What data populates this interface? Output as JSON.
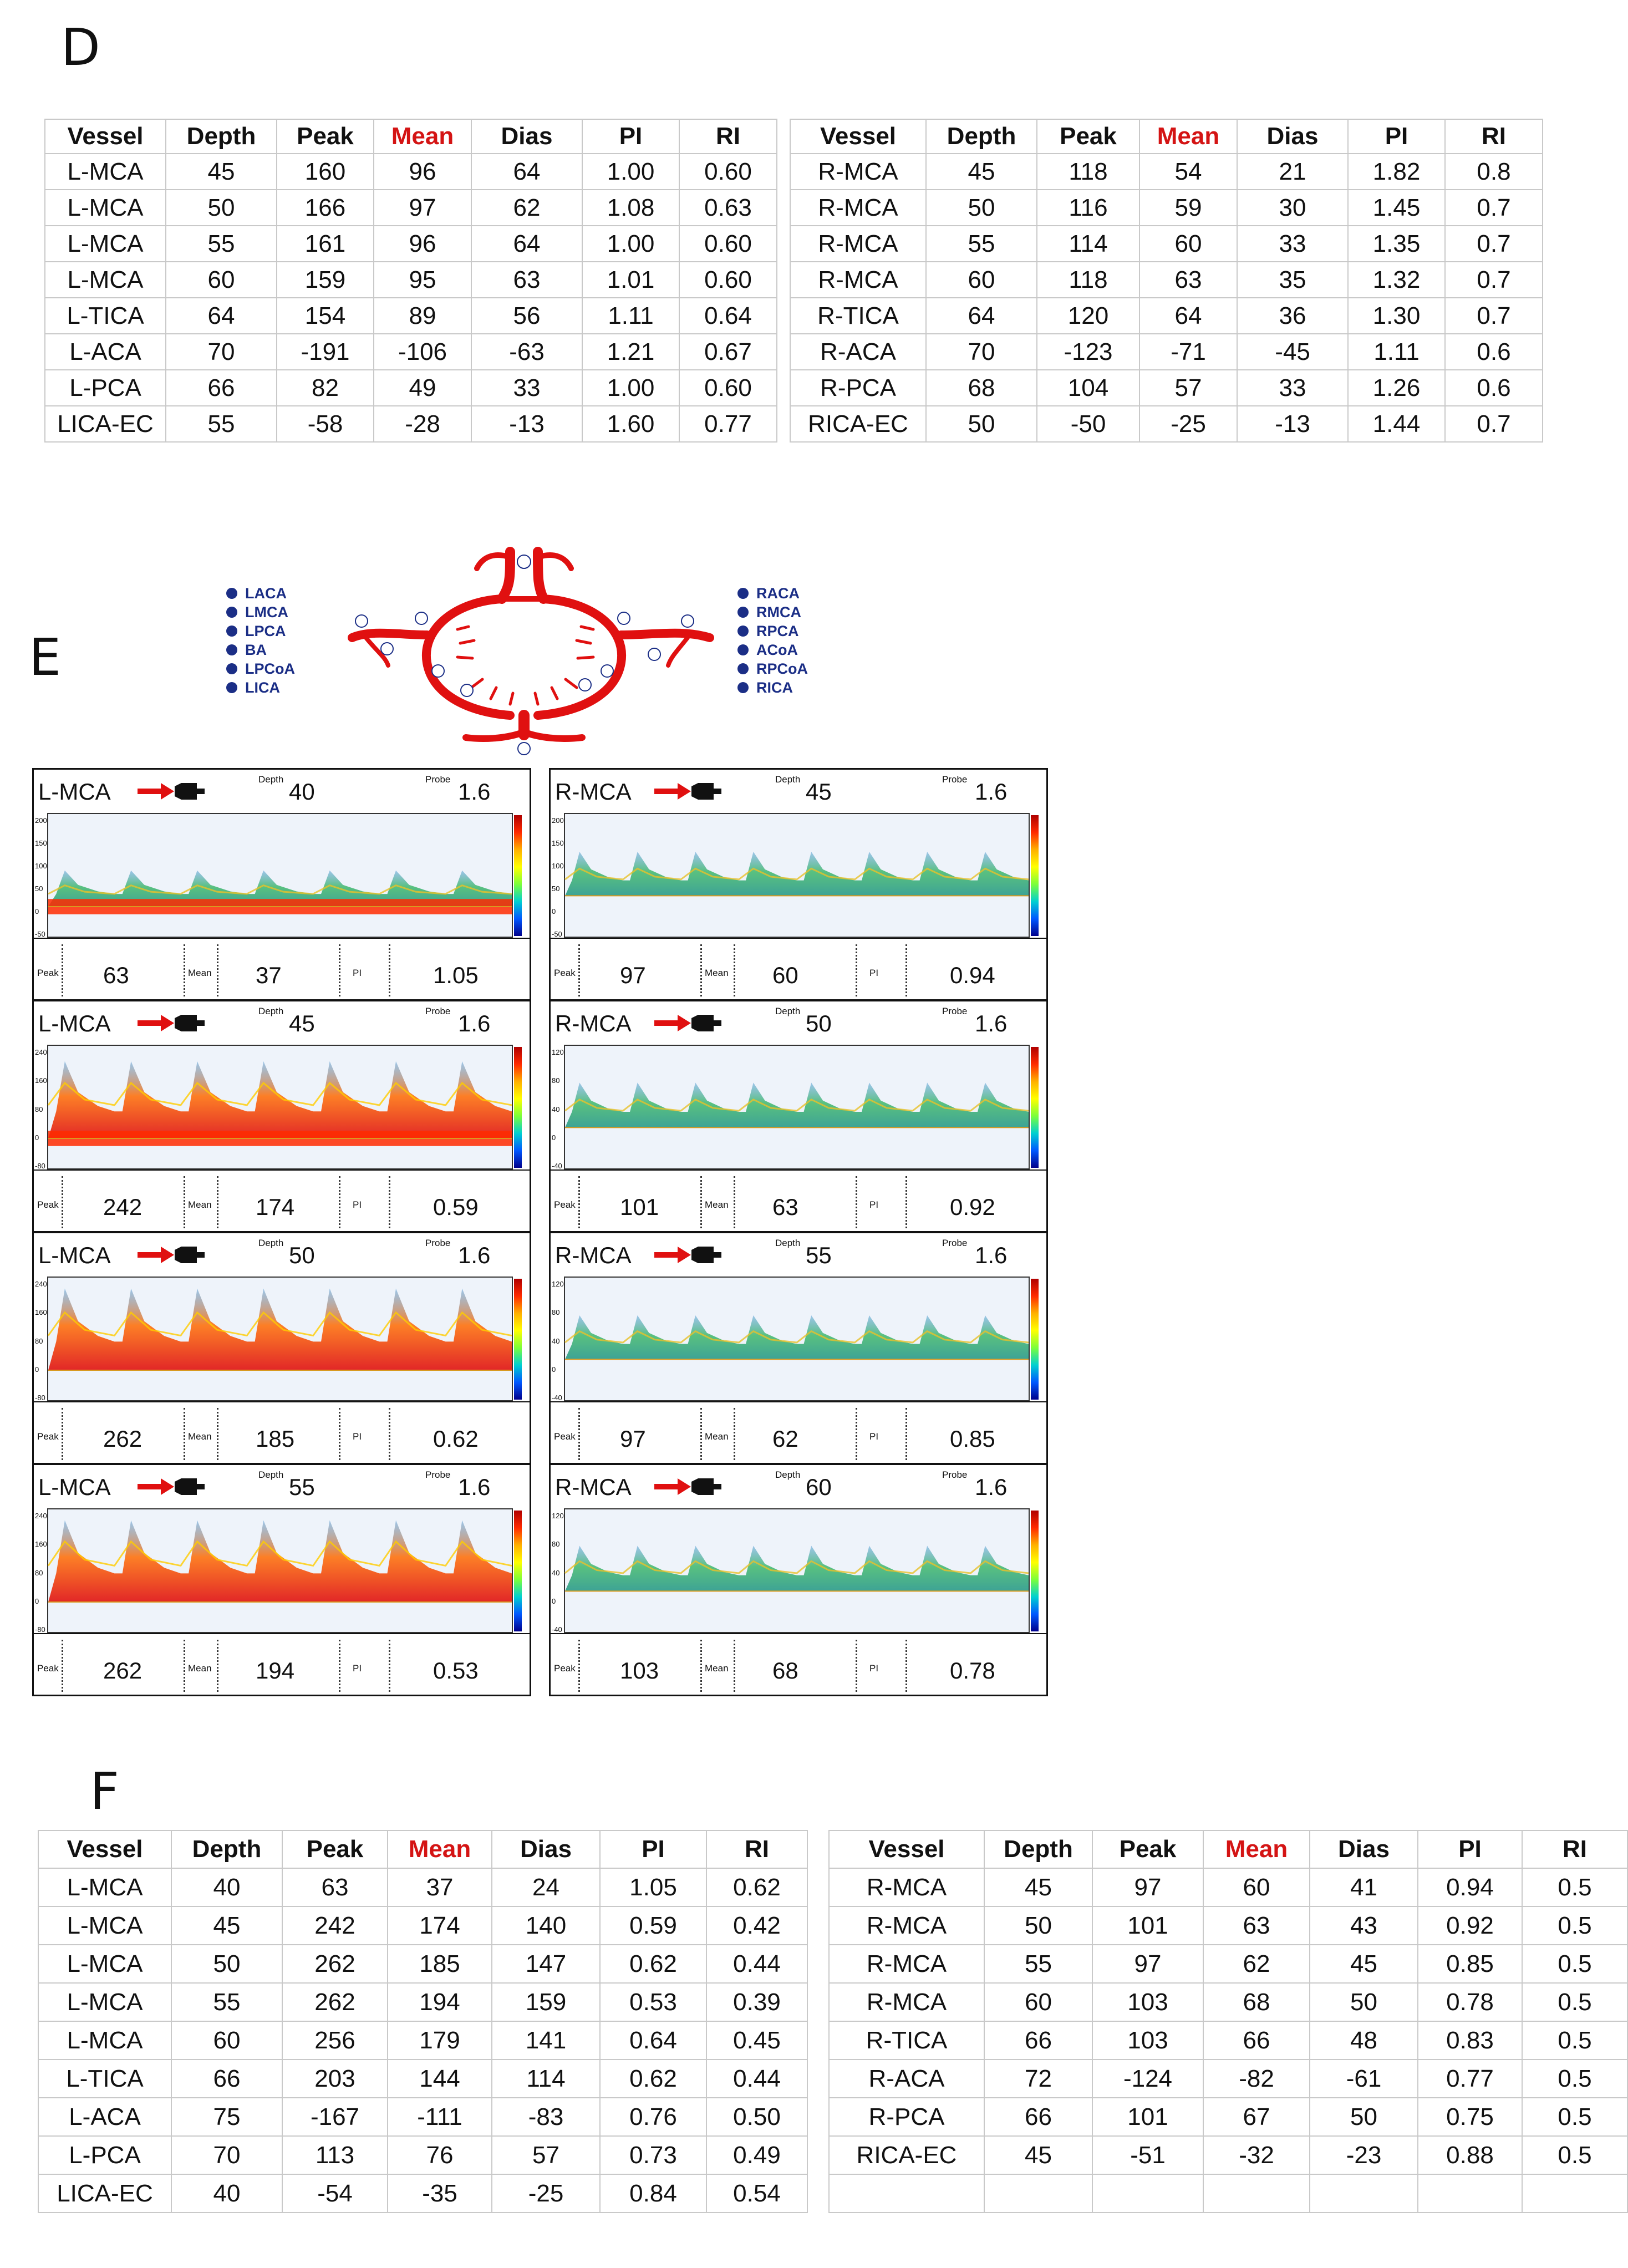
{
  "panels": {
    "d": "D",
    "e": "E",
    "f": "F"
  },
  "table_d": {
    "headers": [
      "Vessel",
      "Depth",
      "Peak",
      "Mean",
      "Dias",
      "PI",
      "RI"
    ],
    "left": [
      [
        "L-MCA",
        "45",
        "160",
        "96",
        "64",
        "1.00",
        "0.60"
      ],
      [
        "L-MCA",
        "50",
        "166",
        "97",
        "62",
        "1.08",
        "0.63"
      ],
      [
        "L-MCA",
        "55",
        "161",
        "96",
        "64",
        "1.00",
        "0.60"
      ],
      [
        "L-MCA",
        "60",
        "159",
        "95",
        "63",
        "1.01",
        "0.60"
      ],
      [
        "L-TICA",
        "64",
        "154",
        "89",
        "56",
        "1.11",
        "0.64"
      ],
      [
        "L-ACA",
        "70",
        "-191",
        "-106",
        "-63",
        "1.21",
        "0.67"
      ],
      [
        "L-PCA",
        "66",
        "82",
        "49",
        "33",
        "1.00",
        "0.60"
      ],
      [
        "LICA-EC",
        "55",
        "-58",
        "-28",
        "-13",
        "1.60",
        "0.77"
      ]
    ],
    "right": [
      [
        "R-MCA",
        "45",
        "118",
        "54",
        "21",
        "1.82",
        "0.8"
      ],
      [
        "R-MCA",
        "50",
        "116",
        "59",
        "30",
        "1.45",
        "0.7"
      ],
      [
        "R-MCA",
        "55",
        "114",
        "60",
        "33",
        "1.35",
        "0.7"
      ],
      [
        "R-MCA",
        "60",
        "118",
        "63",
        "35",
        "1.32",
        "0.7"
      ],
      [
        "R-TICA",
        "64",
        "120",
        "64",
        "36",
        "1.30",
        "0.7"
      ],
      [
        "R-ACA",
        "70",
        "-123",
        "-71",
        "-45",
        "1.11",
        "0.6"
      ],
      [
        "R-PCA",
        "68",
        "104",
        "57",
        "33",
        "1.26",
        "0.6"
      ],
      [
        "RICA-EC",
        "50",
        "-50",
        "-25",
        "-13",
        "1.44",
        "0.7"
      ]
    ]
  },
  "diagram": {
    "legend_left": [
      "LACA",
      "LMCA",
      "LPCA",
      "BA",
      "LPCoA",
      "LICA"
    ],
    "legend_right": [
      "RACA",
      "RMCA",
      "RPCA",
      "ACoA",
      "RPCoA",
      "RICA"
    ]
  },
  "doppler": {
    "labels": {
      "depth": "Depth",
      "probe": "Probe",
      "peak": "Peak",
      "mean": "Mean",
      "pi": "PI"
    },
    "panels": [
      {
        "vessel": "L-MCA",
        "depth": "40",
        "probe": "1.6",
        "peak": "63",
        "mean": "37",
        "pi": "1.05",
        "ticks": [
          "200",
          "150",
          "100",
          "50",
          "0",
          "-50"
        ],
        "scale_note": ""
      },
      {
        "vessel": "R-MCA",
        "depth": "45",
        "probe": "1.6",
        "peak": "97",
        "mean": "60",
        "pi": "0.94",
        "ticks": [
          "200",
          "150",
          "100",
          "50",
          "0",
          "-50"
        ],
        "scale_note": ""
      },
      {
        "vessel": "L-MCA",
        "depth": "45",
        "probe": "1.6",
        "peak": "242",
        "mean": "174",
        "pi": "0.59",
        "ticks": [
          "240",
          "160",
          "80",
          "0",
          "-80"
        ],
        "scale_note": ""
      },
      {
        "vessel": "R-MCA",
        "depth": "50",
        "probe": "1.6",
        "peak": "101",
        "mean": "63",
        "pi": "0.92",
        "ticks": [
          "120",
          "80",
          "40",
          "0",
          "-40"
        ],
        "scale_note": ""
      },
      {
        "vessel": "L-MCA",
        "depth": "50",
        "probe": "1.6",
        "peak": "262",
        "mean": "185",
        "pi": "0.62",
        "ticks": [
          "240",
          "160",
          "80",
          "0",
          "-80"
        ],
        "scale_note": ""
      },
      {
        "vessel": "R-MCA",
        "depth": "55",
        "probe": "1.6",
        "peak": "97",
        "mean": "62",
        "pi": "0.85",
        "ticks": [
          "120",
          "80",
          "40",
          "0",
          "-40"
        ],
        "scale_note": ""
      },
      {
        "vessel": "L-MCA",
        "depth": "55",
        "probe": "1.6",
        "peak": "262",
        "mean": "194",
        "pi": "0.53",
        "ticks": [
          "240",
          "160",
          "80",
          "0",
          "-80"
        ],
        "scale_note": ""
      },
      {
        "vessel": "R-MCA",
        "depth": "60",
        "probe": "1.6",
        "peak": "103",
        "mean": "68",
        "pi": "0.78",
        "ticks": [
          "120",
          "80",
          "40",
          "0",
          "-40"
        ],
        "scale_note": ""
      }
    ]
  },
  "table_f": {
    "headers": [
      "Vessel",
      "Depth",
      "Peak",
      "Mean",
      "Dias",
      "PI",
      "RI"
    ],
    "left": [
      [
        "L-MCA",
        "40",
        "63",
        "37",
        "24",
        "1.05",
        "0.62"
      ],
      [
        "L-MCA",
        "45",
        "242",
        "174",
        "140",
        "0.59",
        "0.42"
      ],
      [
        "L-MCA",
        "50",
        "262",
        "185",
        "147",
        "0.62",
        "0.44"
      ],
      [
        "L-MCA",
        "55",
        "262",
        "194",
        "159",
        "0.53",
        "0.39"
      ],
      [
        "L-MCA",
        "60",
        "256",
        "179",
        "141",
        "0.64",
        "0.45"
      ],
      [
        "L-TICA",
        "66",
        "203",
        "144",
        "114",
        "0.62",
        "0.44"
      ],
      [
        "L-ACA",
        "75",
        "-167",
        "-111",
        "-83",
        "0.76",
        "0.50"
      ],
      [
        "L-PCA",
        "70",
        "113",
        "76",
        "57",
        "0.73",
        "0.49"
      ],
      [
        "LICA-EC",
        "40",
        "-54",
        "-35",
        "-25",
        "0.84",
        "0.54"
      ]
    ],
    "right": [
      [
        "R-MCA",
        "45",
        "97",
        "60",
        "41",
        "0.94",
        "0.5"
      ],
      [
        "R-MCA",
        "50",
        "101",
        "63",
        "43",
        "0.92",
        "0.5"
      ],
      [
        "R-MCA",
        "55",
        "97",
        "62",
        "45",
        "0.85",
        "0.5"
      ],
      [
        "R-MCA",
        "60",
        "103",
        "68",
        "50",
        "0.78",
        "0.5"
      ],
      [
        "R-TICA",
        "66",
        "103",
        "66",
        "48",
        "0.83",
        "0.5"
      ],
      [
        "R-ACA",
        "72",
        "-124",
        "-82",
        "-61",
        "0.77",
        "0.5"
      ],
      [
        "R-PCA",
        "66",
        "101",
        "67",
        "50",
        "0.75",
        "0.5"
      ],
      [
        "RICA-EC",
        "45",
        "-51",
        "-32",
        "-23",
        "0.88",
        "0.5"
      ],
      [
        "",
        "",
        "",
        "",
        "",
        "",
        ""
      ]
    ]
  },
  "colors": {
    "highlight": "#d41414",
    "artery": "#e01010",
    "legend": "#1b2e86"
  }
}
